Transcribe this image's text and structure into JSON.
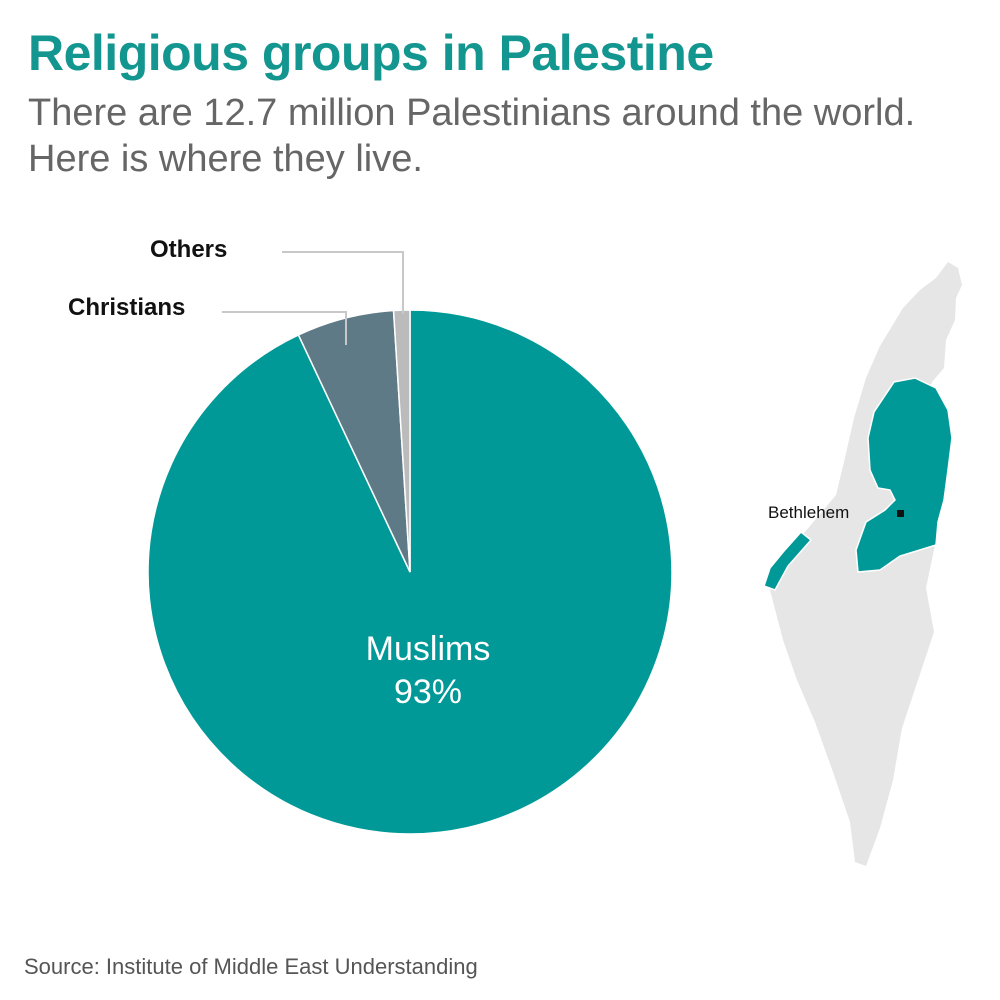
{
  "header": {
    "title": "Religious groups in Palestine",
    "subtitle": "There are 12.7 million Palestinians around the world. Here is where they live."
  },
  "chart_data": {
    "type": "pie",
    "title": "Religious groups in Palestine",
    "slices": [
      {
        "name": "Muslims",
        "value": 93,
        "label": "Muslims",
        "value_label": "93%",
        "color": "#009997"
      },
      {
        "name": "Christians",
        "value": 6,
        "label": "Christians",
        "color": "#5e7a86"
      },
      {
        "name": "Others",
        "value": 1,
        "label": "Others",
        "color": "#bbbbbb"
      }
    ]
  },
  "map": {
    "place_label": "Bethlehem",
    "land_color": "#e6e6e6",
    "territory_color": "#009997"
  },
  "footer": {
    "source": "Source: Institute of Middle East Understanding"
  }
}
